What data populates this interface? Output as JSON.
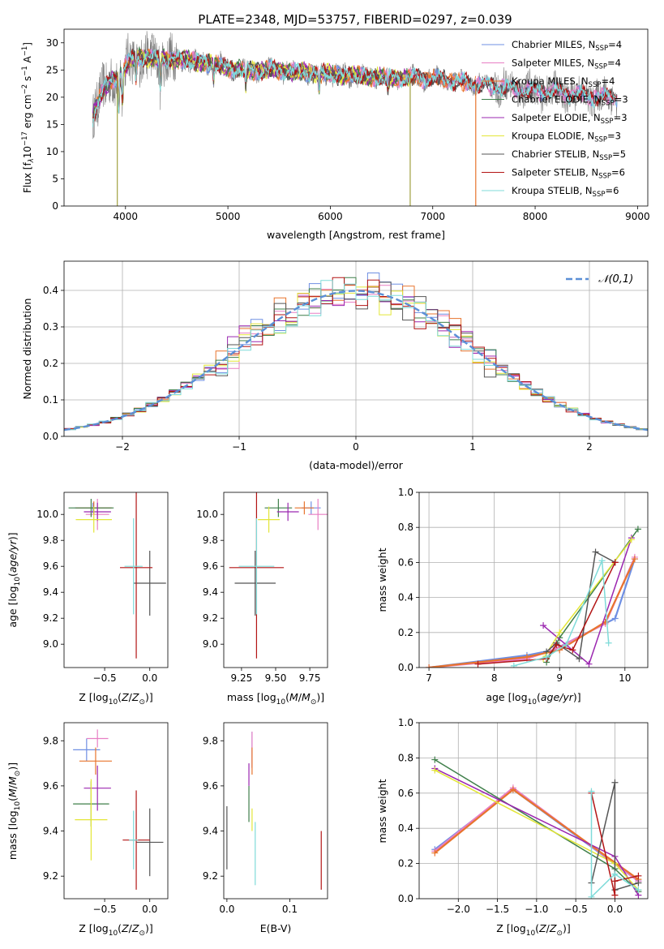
{
  "figure_title": "PLATE=2348, MJD=53757, FIBERID=0297, z=0.039",
  "model_colors": [
    "#6f8fe3",
    "#e77fc4",
    "#e8742d",
    "#3f7f4a",
    "#9b27b0",
    "#e3e637",
    "#555555",
    "#b31515",
    "#7fdbd9"
  ],
  "chart_data": [
    {
      "id": "spectrum",
      "type": "line",
      "title": "PLATE=2348, MJD=53757, FIBERID=0297, z=0.039",
      "xlabel": "wavelength [Angstrom, rest frame]",
      "ylabel_parts": [
        "Flux [f",
        "λ",
        "10",
        "−17",
        " erg cm",
        "−2",
        " s",
        "−1",
        " A",
        "−1",
        "]"
      ],
      "xlim": [
        3400,
        9100
      ],
      "ylim": [
        0,
        32.5
      ],
      "xticks": [
        4000,
        5000,
        6000,
        7000,
        8000,
        9000
      ],
      "yticks": [
        0,
        5,
        10,
        15,
        20,
        25,
        30
      ],
      "legend_loc": "upper right",
      "legend": [
        {
          "main": "Chabrier MILES, N",
          "sub": "SSP",
          "tail": "=4"
        },
        {
          "main": "Salpeter MILES, N",
          "sub": "SSP",
          "tail": "=4"
        },
        {
          "main": "Kroupa MILES, N",
          "sub": "SSP",
          "tail": "=4"
        },
        {
          "main": "Chabrier ELODIE, N",
          "sub": "SSP",
          "tail": "=3"
        },
        {
          "main": "Salpeter ELODIE, N",
          "sub": "SSP",
          "tail": "=3"
        },
        {
          "main": "Kroupa ELODIE, N",
          "sub": "SSP",
          "tail": "=3"
        },
        {
          "main": "Chabrier STELIB, N",
          "sub": "SSP",
          "tail": "=5"
        },
        {
          "main": "Salpeter STELIB, N",
          "sub": "SSP",
          "tail": "=6"
        },
        {
          "main": "Kroupa STELIB, N",
          "sub": "SSP",
          "tail": "=6"
        }
      ],
      "continuum": {
        "x": [
          3650,
          3750,
          3850,
          3950,
          4050,
          4150,
          4300,
          4500,
          4700,
          4900,
          5100,
          5400,
          5800,
          6200,
          6600,
          7000,
          7400,
          7800,
          8200,
          8600,
          8800
        ],
        "y": [
          15,
          20,
          23,
          24,
          27,
          27.5,
          27,
          27,
          26.5,
          26,
          25,
          25,
          24.5,
          24,
          23.5,
          23.5,
          22.5,
          21.5,
          21,
          20,
          20
        ]
      },
      "observed_spectrum": {
        "x_range": [
          3680,
          8800
        ],
        "note_color": "#7f7f7f"
      },
      "drop_lines": [
        {
          "x": 3920,
          "color": "#a0a040"
        },
        {
          "x": 6780,
          "color": "#a0a040"
        },
        {
          "x": 7420,
          "color": "#e8742d"
        }
      ]
    },
    {
      "id": "residuals",
      "type": "histogram",
      "xlabel": "(data-model)/error",
      "ylabel": "Normed distribution",
      "xlim": [
        -2.5,
        2.5
      ],
      "ylim": [
        0,
        0.48
      ],
      "xticks": [
        -2,
        -1,
        0,
        1,
        2
      ],
      "xticklabels": [
        "−2",
        "−1",
        "0",
        "1",
        "2"
      ],
      "yticks": [
        0.0,
        0.1,
        0.2,
        0.3,
        0.4
      ],
      "yticklabels": [
        "0.0",
        "0.1",
        "0.2",
        "0.3",
        "0.4"
      ],
      "grid": true,
      "bin_width": 0.1,
      "reference_curve": {
        "name": "𝒩(0,1)",
        "mean": 0,
        "sigma": 1,
        "style": "dashed",
        "color": "#5b8fd6"
      },
      "legend_loc": "upper right"
    },
    {
      "id": "age_vs_Z",
      "type": "errorbar",
      "xlabel_parts": [
        "Z [log",
        "10",
        "(",
        "Z",
        "/",
        "Z",
        "⊙",
        ")]"
      ],
      "ylabel_parts": [
        "age  [log",
        "10",
        "(",
        "age/yr",
        ")]"
      ],
      "xlim": [
        -0.95,
        0.2
      ],
      "ylim": [
        8.82,
        10.17
      ],
      "xticks": [
        -0.5,
        0.0
      ],
      "xticklabels": [
        "−0.5",
        "0.0"
      ],
      "yticks": [
        9.0,
        9.2,
        9.4,
        9.6,
        9.8,
        10.0
      ],
      "yticklabels": [
        "9.0",
        "9.2",
        "9.4",
        "9.6",
        "9.8",
        "10.0"
      ],
      "points": [
        {
          "x": -0.63,
          "y": 10.05,
          "xerr": 0.2,
          "yerr": 0.04,
          "model": 0
        },
        {
          "x": -0.58,
          "y": 10.0,
          "xerr": 0.13,
          "yerr": 0.12,
          "model": 1
        },
        {
          "x": -0.62,
          "y": 10.05,
          "xerr": 0.2,
          "yerr": 0.05,
          "model": 2
        },
        {
          "x": -0.65,
          "y": 10.05,
          "xerr": 0.25,
          "yerr": 0.07,
          "model": 3
        },
        {
          "x": -0.58,
          "y": 10.02,
          "xerr": 0.15,
          "yerr": 0.07,
          "model": 4
        },
        {
          "x": -0.62,
          "y": 9.96,
          "xerr": 0.2,
          "yerr": 0.1,
          "model": 5
        },
        {
          "x": 0.0,
          "y": 9.47,
          "xerr": 0.18,
          "yerr": 0.25,
          "model": 6
        },
        {
          "x": -0.15,
          "y": 9.59,
          "xerr": 0.18,
          "yerr": 0.7,
          "model": 7
        },
        {
          "x": -0.18,
          "y": 9.6,
          "xerr": 0.1,
          "yerr": 0.37,
          "model": 8
        }
      ]
    },
    {
      "id": "age_vs_mass",
      "type": "errorbar",
      "xlabel_parts": [
        "mass [log",
        "10",
        "(",
        "M",
        "/",
        "M",
        "⊙",
        ")]"
      ],
      "xlim": [
        9.12,
        9.88
      ],
      "ylim": [
        8.82,
        10.17
      ],
      "xticks": [
        9.25,
        9.5,
        9.75
      ],
      "xticklabels": [
        "9.25",
        "9.50",
        "9.75"
      ],
      "yticks": [
        9.0,
        9.2,
        9.4,
        9.6,
        9.8,
        10.0
      ],
      "yticklabels": [
        "9.0",
        "9.2",
        "9.4",
        "9.6",
        "9.8",
        "10.0"
      ],
      "points": [
        {
          "x": 9.76,
          "y": 10.05,
          "xerr": 0.07,
          "yerr": 0.05,
          "model": 0
        },
        {
          "x": 9.81,
          "y": 10.0,
          "xerr": 0.07,
          "yerr": 0.12,
          "model": 1
        },
        {
          "x": 9.71,
          "y": 10.05,
          "xerr": 0.07,
          "yerr": 0.05,
          "model": 2
        },
        {
          "x": 9.52,
          "y": 10.05,
          "xerr": 0.1,
          "yerr": 0.07,
          "model": 3
        },
        {
          "x": 9.59,
          "y": 10.02,
          "xerr": 0.08,
          "yerr": 0.07,
          "model": 4
        },
        {
          "x": 9.45,
          "y": 9.96,
          "xerr": 0.08,
          "yerr": 0.1,
          "model": 5
        },
        {
          "x": 9.35,
          "y": 9.47,
          "xerr": 0.15,
          "yerr": 0.25,
          "model": 6
        },
        {
          "x": 9.36,
          "y": 9.59,
          "xerr": 0.2,
          "yerr": 0.7,
          "model": 7
        },
        {
          "x": 9.36,
          "y": 9.6,
          "xerr": 0.13,
          "yerr": 0.37,
          "model": 8
        }
      ]
    },
    {
      "id": "massweight_vs_age",
      "type": "line",
      "xlabel_parts": [
        "age  [log",
        "10",
        "(",
        "age/yr",
        ")]"
      ],
      "ylabel": "mass weight",
      "xlim": [
        6.85,
        10.35
      ],
      "ylim": [
        0,
        1
      ],
      "xticks": [
        7,
        8,
        9,
        10
      ],
      "yticks": [
        0.0,
        0.2,
        0.4,
        0.6,
        0.8,
        1.0
      ],
      "yticklabels": [
        "0.0",
        "0.2",
        "0.4",
        "0.6",
        "0.8",
        "1.0"
      ],
      "grid": true,
      "series": [
        {
          "model": 0,
          "x": [
            7.0,
            8.5,
            8.9,
            9.85,
            10.15
          ],
          "y": [
            0.0,
            0.07,
            0.1,
            0.28,
            0.62
          ]
        },
        {
          "model": 1,
          "x": [
            7.0,
            8.5,
            8.9,
            9.7,
            10.15
          ],
          "y": [
            0.0,
            0.05,
            0.1,
            0.25,
            0.63
          ]
        },
        {
          "model": 2,
          "x": [
            7.0,
            8.5,
            9.0,
            9.7,
            10.15
          ],
          "y": [
            0.0,
            0.06,
            0.1,
            0.26,
            0.62
          ]
        },
        {
          "model": 3,
          "x": [
            8.8,
            9.0,
            10.2
          ],
          "y": [
            0.03,
            0.17,
            0.79
          ]
        },
        {
          "model": 4,
          "x": [
            8.75,
            9.45,
            10.1
          ],
          "y": [
            0.24,
            0.02,
            0.74
          ]
        },
        {
          "model": 5,
          "x": [
            8.75,
            9.0,
            10.1
          ],
          "y": [
            0.05,
            0.2,
            0.73
          ]
        },
        {
          "model": 6,
          "x": [
            8.8,
            8.95,
            9.3,
            9.55,
            9.85
          ],
          "y": [
            0.09,
            0.14,
            0.05,
            0.66,
            0.6
          ]
        },
        {
          "model": 7,
          "x": [
            7.75,
            8.8,
            8.95,
            9.2,
            9.85
          ],
          "y": [
            0.02,
            0.05,
            0.13,
            0.1,
            0.6
          ]
        },
        {
          "model": 8,
          "x": [
            8.3,
            8.8,
            9.1,
            9.65,
            9.75
          ],
          "y": [
            0.01,
            0.06,
            0.13,
            0.61,
            0.14
          ]
        }
      ]
    },
    {
      "id": "mass_vs_Z",
      "type": "errorbar",
      "xlabel_parts": [
        "Z [log",
        "10",
        "(",
        "Z",
        "/",
        "Z",
        "⊙",
        ")]"
      ],
      "ylabel_parts": [
        "mass [log",
        "10",
        "(",
        "M",
        "/",
        "M",
        "⊙",
        ")]"
      ],
      "xlim": [
        -0.95,
        0.2
      ],
      "ylim": [
        9.1,
        9.88
      ],
      "xticks": [
        -0.5,
        0.0
      ],
      "xticklabels": [
        "−0.5",
        "0.0"
      ],
      "yticks": [
        9.2,
        9.4,
        9.6,
        9.8
      ],
      "yticklabels": [
        "9.2",
        "9.4",
        "9.6",
        "9.8"
      ],
      "points": [
        {
          "x": -0.7,
          "y": 9.76,
          "xerr": 0.15,
          "yerr": 0.05,
          "model": 0
        },
        {
          "x": -0.58,
          "y": 9.81,
          "xerr": 0.12,
          "yerr": 0.04,
          "model": 1
        },
        {
          "x": -0.6,
          "y": 9.71,
          "xerr": 0.18,
          "yerr": 0.06,
          "model": 2
        },
        {
          "x": -0.65,
          "y": 9.52,
          "xerr": 0.2,
          "yerr": 0.1,
          "model": 3
        },
        {
          "x": -0.58,
          "y": 9.59,
          "xerr": 0.15,
          "yerr": 0.1,
          "model": 4
        },
        {
          "x": -0.65,
          "y": 9.45,
          "xerr": 0.18,
          "yerr": 0.18,
          "model": 5
        },
        {
          "x": 0.0,
          "y": 9.35,
          "xerr": 0.15,
          "yerr": 0.15,
          "model": 6
        },
        {
          "x": -0.15,
          "y": 9.36,
          "xerr": 0.15,
          "yerr": 0.22,
          "model": 7
        },
        {
          "x": -0.18,
          "y": 9.36,
          "xerr": 0.05,
          "yerr": 0.13,
          "model": 8
        }
      ]
    },
    {
      "id": "mass_vs_EBV",
      "type": "errorbar",
      "xlabel": "E(B-V)",
      "xlim": [
        -0.005,
        0.16
      ],
      "ylim": [
        9.1,
        9.88
      ],
      "xticks": [
        0.0,
        0.1
      ],
      "xticklabels": [
        "0.0",
        "0.1"
      ],
      "yticks": [
        9.2,
        9.4,
        9.6,
        9.8
      ],
      "yticklabels": [
        "9.2",
        "9.4",
        "9.6",
        "9.8"
      ],
      "points": [
        {
          "x": 0.04,
          "y": 9.76,
          "xerr": 0,
          "yerr": 0.08,
          "model": 0
        },
        {
          "x": 0.04,
          "y": 9.76,
          "xerr": 0,
          "yerr": 0.08,
          "model": 1
        },
        {
          "x": 0.04,
          "y": 9.71,
          "xerr": 0,
          "yerr": 0.06,
          "model": 2
        },
        {
          "x": 0.035,
          "y": 9.52,
          "xerr": 0,
          "yerr": 0.08,
          "model": 3
        },
        {
          "x": 0.035,
          "y": 9.65,
          "xerr": 0,
          "yerr": 0.05,
          "model": 4
        },
        {
          "x": 0.04,
          "y": 9.45,
          "xerr": 0,
          "yerr": 0.05,
          "model": 5
        },
        {
          "x": 0.0,
          "y": 9.37,
          "xerr": 0,
          "yerr": 0.14,
          "model": 6
        },
        {
          "x": 0.15,
          "y": 9.27,
          "xerr": 0,
          "yerr": 0.13,
          "model": 7
        },
        {
          "x": 0.045,
          "y": 9.3,
          "xerr": 0,
          "yerr": 0.14,
          "model": 8
        }
      ]
    },
    {
      "id": "massweight_vs_Z",
      "type": "line",
      "xlabel_parts": [
        "Z [log",
        "10",
        "(",
        "Z",
        "/",
        "Z",
        "⊙",
        ")]"
      ],
      "ylabel": "mass weight",
      "xlim": [
        -2.5,
        0.42
      ],
      "ylim": [
        0,
        1
      ],
      "xticks": [
        -2.0,
        -1.5,
        -1.0,
        -0.5,
        0.0
      ],
      "xticklabels": [
        "−2.0",
        "−1.5",
        "−1.0",
        "−0.5",
        "0.0"
      ],
      "yticks": [
        0.0,
        0.2,
        0.4,
        0.6,
        0.8,
        1.0
      ],
      "yticklabels": [
        "0.0",
        "0.2",
        "0.4",
        "0.6",
        "0.8",
        "1.0"
      ],
      "grid": true,
      "series": [
        {
          "model": 0,
          "x": [
            -2.3,
            -1.3,
            0.3
          ],
          "y": [
            0.28,
            0.62,
            0.1
          ]
        },
        {
          "model": 1,
          "x": [
            -2.3,
            -1.3,
            0.3
          ],
          "y": [
            0.27,
            0.63,
            0.1
          ]
        },
        {
          "model": 2,
          "x": [
            -2.3,
            -1.3,
            0.3
          ],
          "y": [
            0.26,
            0.62,
            0.11
          ]
        },
        {
          "model": 3,
          "x": [
            -2.3,
            0.0,
            0.3
          ],
          "y": [
            0.79,
            0.17,
            0.04
          ]
        },
        {
          "model": 4,
          "x": [
            -2.3,
            0.0,
            0.3
          ],
          "y": [
            0.74,
            0.24,
            0.02
          ]
        },
        {
          "model": 5,
          "x": [
            -2.3,
            0.0,
            0.3
          ],
          "y": [
            0.73,
            0.2,
            0.05
          ]
        },
        {
          "model": 6,
          "x": [
            -0.3,
            0.0,
            0.0,
            0.3
          ],
          "y": [
            0.09,
            0.66,
            0.05,
            0.09
          ]
        },
        {
          "model": 7,
          "x": [
            -0.3,
            0.0,
            0.0,
            0.3
          ],
          "y": [
            0.6,
            0.02,
            0.1,
            0.13
          ]
        },
        {
          "model": 8,
          "x": [
            -0.3,
            -0.3,
            0.0,
            0.3
          ],
          "y": [
            0.61,
            0.01,
            0.14,
            0.05
          ]
        }
      ]
    }
  ]
}
